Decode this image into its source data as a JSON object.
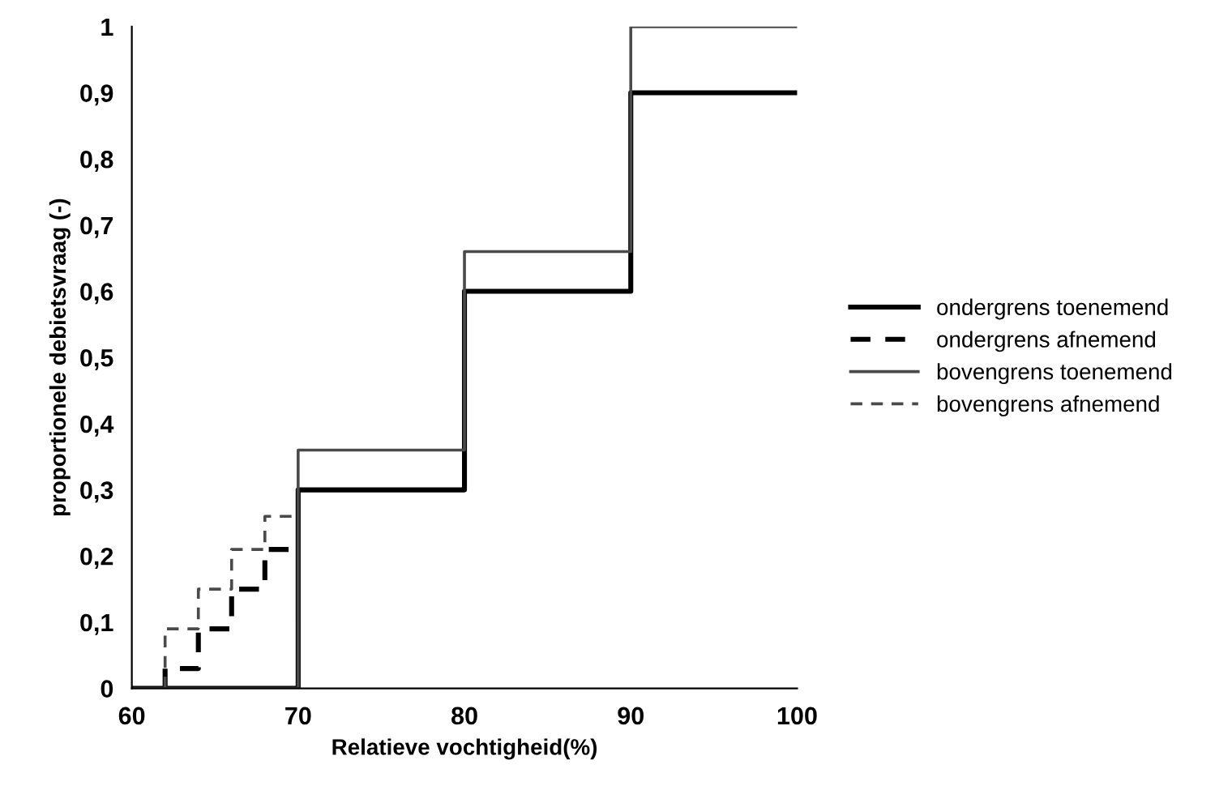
{
  "chart_data": {
    "type": "step",
    "xlabel": "Relatieve vochtigheid(%)",
    "ylabel": "proportionele debietsvraag (-)",
    "series": [
      {
        "name": "ondergrens toenemend",
        "color": "#000000",
        "line_style": "solid",
        "x": [
          60,
          70,
          80,
          90,
          100
        ],
        "values": [
          0,
          0.3,
          0.6,
          0.9,
          0.9
        ]
      },
      {
        "name": "ondergrens afnemend",
        "color": "#000000",
        "line_style": "dashed",
        "x": [
          62,
          62,
          64,
          66,
          68,
          70
        ],
        "values": [
          0,
          0.03,
          0.09,
          0.15,
          0.21,
          0.21
        ]
      },
      {
        "name": "bovengrens toenemend",
        "color": "#4a4a4a",
        "line_style": "solid",
        "x": [
          60,
          70,
          80,
          90,
          100
        ],
        "values": [
          0,
          0.36,
          0.66,
          1,
          1
        ]
      },
      {
        "name": "bovengrens afnemend",
        "color": "#4a4a4a",
        "line_style": "dashed",
        "x": [
          62,
          62,
          64,
          66,
          68,
          70
        ],
        "values": [
          0,
          0.09,
          0.15,
          0.21,
          0.26,
          0.26
        ]
      }
    ],
    "xlim": [
      60,
      100
    ],
    "xticks": [
      60,
      70,
      80,
      90,
      100
    ],
    "ylim": [
      0,
      1
    ],
    "yticks": [
      0,
      {
        "value": 0.1,
        "label": "0,1"
      },
      {
        "value": 0.2,
        "label": "0,2"
      },
      {
        "value": 0.3,
        "label": "0,3"
      },
      {
        "value": 0.4,
        "label": "0,4"
      },
      {
        "value": 0.5,
        "label": "0,5"
      },
      {
        "value": 0.6,
        "label": "0,6"
      },
      {
        "value": 0.7,
        "label": "0,7"
      },
      {
        "value": 0.8,
        "label": "0,8"
      },
      {
        "value": 0.9,
        "label": "0,9"
      },
      1
    ],
    "grid": false,
    "legend": "right"
  }
}
